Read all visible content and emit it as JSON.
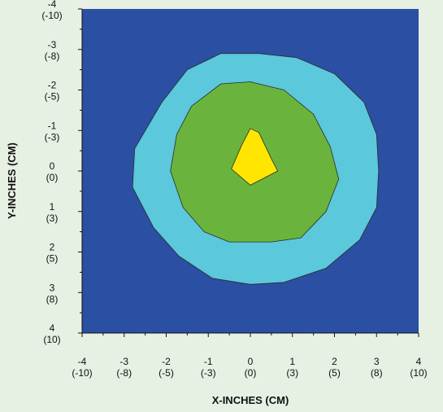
{
  "chart_data": {
    "type": "contour",
    "xlabel": "X-INCHES (CM)",
    "ylabel": "Y-INCHES (CM)",
    "xlim": [
      -4,
      4
    ],
    "ylim": [
      -4,
      4
    ],
    "y_inverted": true,
    "grid": false,
    "x_ticks": [
      {
        "value": -4,
        "label": "-4",
        "sublabel": "(-10)"
      },
      {
        "value": -3,
        "label": "-3",
        "sublabel": "(-8)"
      },
      {
        "value": -2,
        "label": "-2",
        "sublabel": "(-5)"
      },
      {
        "value": -1,
        "label": "-1",
        "sublabel": "(-3)"
      },
      {
        "value": 0,
        "label": "0",
        "sublabel": "(0)"
      },
      {
        "value": 1,
        "label": "1",
        "sublabel": "(3)"
      },
      {
        "value": 2,
        "label": "2",
        "sublabel": "(5)"
      },
      {
        "value": 3,
        "label": "3",
        "sublabel": "(8)"
      },
      {
        "value": 4,
        "label": "4",
        "sublabel": "(10)"
      }
    ],
    "y_ticks": [
      {
        "value": -4,
        "label": "-4",
        "sublabel": "(-10)"
      },
      {
        "value": -3,
        "label": "-3",
        "sublabel": "(-8)"
      },
      {
        "value": -2,
        "label": "-2",
        "sublabel": "(-5)"
      },
      {
        "value": -1,
        "label": "-1",
        "sublabel": "(-3)"
      },
      {
        "value": 0,
        "label": "0",
        "sublabel": "(0)"
      },
      {
        "value": 1,
        "label": "1",
        "sublabel": "(3)"
      },
      {
        "value": 2,
        "label": "2",
        "sublabel": "(5)"
      },
      {
        "value": 3,
        "label": "3",
        "sublabel": "(8)"
      },
      {
        "value": 4,
        "label": "4",
        "sublabel": "(10)"
      }
    ],
    "background_color": "#2b4fa3",
    "regions": [
      {
        "level": 1,
        "color": "#5bc8dc",
        "points": [
          [
            -2.1,
            -1.7
          ],
          [
            -1.5,
            -2.5
          ],
          [
            -0.7,
            -2.9
          ],
          [
            0.2,
            -2.9
          ],
          [
            1.1,
            -2.8
          ],
          [
            2.0,
            -2.4
          ],
          [
            2.7,
            -1.7
          ],
          [
            3.0,
            -0.9
          ],
          [
            3.05,
            0.0
          ],
          [
            3.0,
            0.9
          ],
          [
            2.6,
            1.7
          ],
          [
            1.8,
            2.4
          ],
          [
            0.8,
            2.75
          ],
          [
            0.0,
            2.8
          ],
          [
            -0.9,
            2.65
          ],
          [
            -1.7,
            2.1
          ],
          [
            -2.3,
            1.4
          ],
          [
            -2.8,
            0.4
          ],
          [
            -2.75,
            -0.55
          ]
        ]
      },
      {
        "level": 2,
        "color": "#6ab43e",
        "points": [
          [
            -1.4,
            -1.6
          ],
          [
            -0.7,
            -2.15
          ],
          [
            0.0,
            -2.2
          ],
          [
            0.8,
            -2.0
          ],
          [
            1.5,
            -1.4
          ],
          [
            1.9,
            -0.6
          ],
          [
            2.1,
            0.2
          ],
          [
            1.8,
            1.0
          ],
          [
            1.2,
            1.65
          ],
          [
            0.5,
            1.75
          ],
          [
            -0.5,
            1.75
          ],
          [
            -1.1,
            1.5
          ],
          [
            -1.6,
            0.9
          ],
          [
            -1.9,
            0.0
          ],
          [
            -1.75,
            -0.9
          ]
        ]
      },
      {
        "level": 3,
        "color": "#ffe600",
        "points": [
          [
            0.0,
            -1.05
          ],
          [
            0.2,
            -0.95
          ],
          [
            0.5,
            -0.3
          ],
          [
            0.65,
            0.0
          ],
          [
            0.0,
            0.35
          ],
          [
            -0.45,
            -0.05
          ],
          [
            -0.2,
            -0.65
          ]
        ]
      }
    ]
  }
}
